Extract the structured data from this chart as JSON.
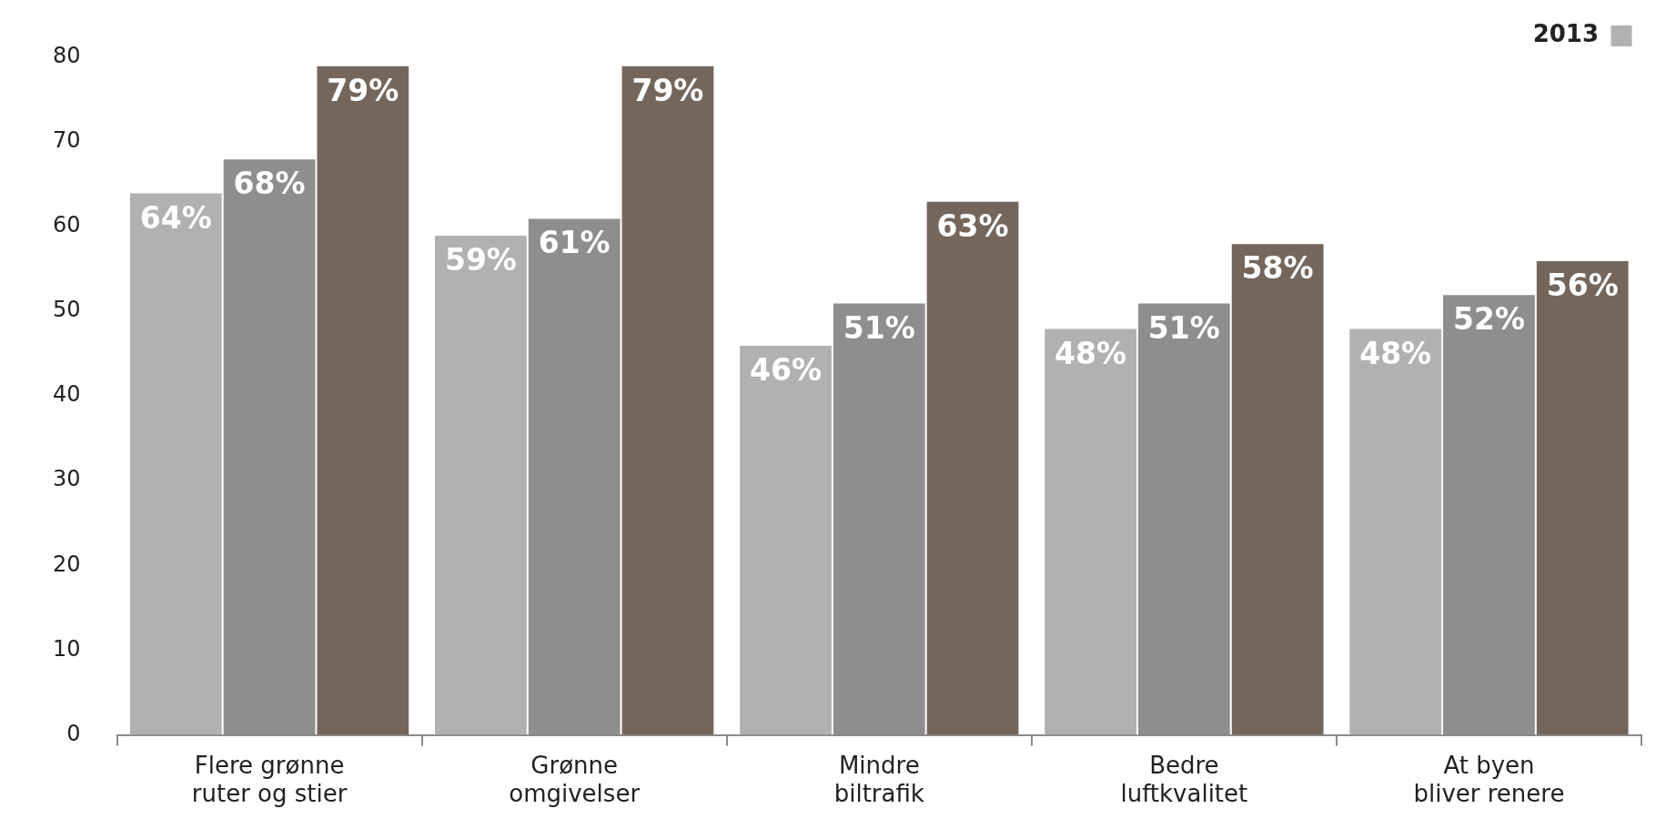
{
  "chart_data": {
    "type": "bar",
    "categories": [
      "Flere grønne\nruter og stier",
      "Grønne\nomgivelser",
      "Mindre\nbiltrafik",
      "Bedre\nluftkvalitet",
      "At byen\nbliver renere"
    ],
    "series": [
      {
        "name": "2013",
        "color": "#b1b1b1",
        "values": [
          64,
          59,
          46,
          48,
          48
        ],
        "value_labels": [
          "64%",
          "59%",
          "46%",
          "48%",
          "48%"
        ]
      },
      {
        "color": "#8f8d8e",
        "values": [
          68,
          61,
          51,
          51,
          52
        ],
        "value_labels": [
          "68%",
          "61%",
          "51%",
          "51%",
          "52%"
        ]
      },
      {
        "color": "#75665c",
        "values": [
          79,
          79,
          63,
          58,
          56
        ],
        "value_labels": [
          "79%",
          "79%",
          "63%",
          "58%",
          "56%"
        ]
      }
    ],
    "ylim": [
      0,
      80
    ],
    "yticks": [
      0,
      10,
      20,
      30,
      40,
      50,
      60,
      70,
      80
    ],
    "grid": false,
    "legend": "top right"
  }
}
